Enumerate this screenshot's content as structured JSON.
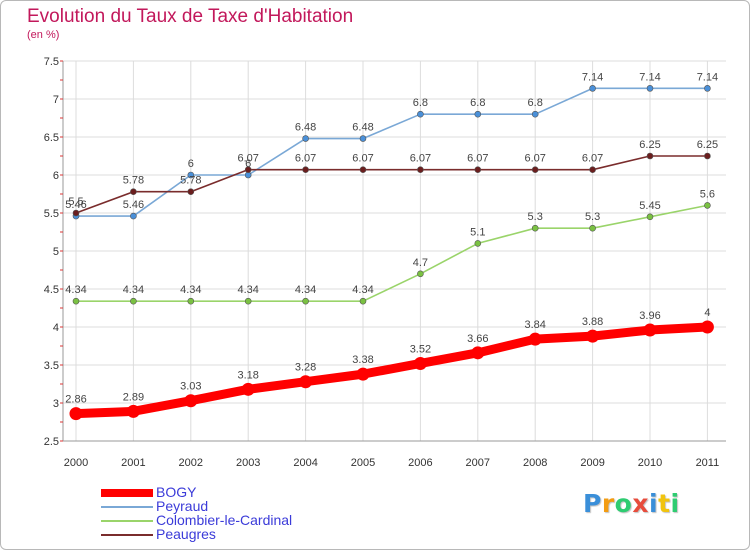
{
  "header": {
    "title": "Evolution du Taux de Taxe d'Habitation",
    "subtitle": "(en %)"
  },
  "chart_data": {
    "type": "line",
    "x": [
      "2000",
      "2001",
      "2002",
      "2003",
      "2004",
      "2005",
      "2006",
      "2007",
      "2008",
      "2009",
      "2010",
      "2011"
    ],
    "ylim": [
      2.5,
      7.5
    ],
    "yticks": [
      "2.5",
      "3",
      "3.5",
      "4",
      "4.5",
      "5",
      "5.5",
      "6",
      "6.5",
      "7",
      "7.5"
    ],
    "grid": true,
    "legend_position": "bottom-left",
    "series": [
      {
        "name": "Peyraud",
        "color": "#7aa8d6",
        "point_color": "#4a90d9",
        "values": [
          5.46,
          5.46,
          6,
          6,
          6.48,
          6.48,
          6.8,
          6.8,
          6.8,
          7.14,
          7.14,
          7.14
        ],
        "labels": [
          "5.46",
          "5.46",
          "6",
          "6",
          "6.48",
          "6.48",
          "6.8",
          "6.8",
          "6.8",
          "7.14",
          "7.14",
          "7.14"
        ]
      },
      {
        "name": "Peaugres",
        "color": "#7a2c2c",
        "point_color": "#6b1e1e",
        "values": [
          5.5,
          5.78,
          5.78,
          6.07,
          6.07,
          6.07,
          6.07,
          6.07,
          6.07,
          6.07,
          6.25,
          6.25
        ],
        "labels": [
          "5.5",
          "5.78",
          "5.78",
          "6.07",
          "6.07",
          "6.07",
          "6.07",
          "6.07",
          "6.07",
          "6.07",
          "6.25",
          "6.25"
        ]
      },
      {
        "name": "Colombier-le-Cardinal",
        "color": "#9ad46a",
        "point_color": "#7ac142",
        "values": [
          4.34,
          4.34,
          4.34,
          4.34,
          4.34,
          4.34,
          4.7,
          5.1,
          5.3,
          5.3,
          5.45,
          5.6
        ],
        "labels": [
          "4.34",
          "4.34",
          "4.34",
          "4.34",
          "4.34",
          "4.34",
          "4.7",
          "5.1",
          "5.3",
          "5.3",
          "5.45",
          "5.6"
        ]
      },
      {
        "name": "BOGY",
        "color": "#ff0000",
        "point_color": "#ff0000",
        "values": [
          2.86,
          2.89,
          3.03,
          3.18,
          3.28,
          3.38,
          3.52,
          3.66,
          3.84,
          3.88,
          3.96,
          4
        ],
        "labels": [
          "2.86",
          "2.89",
          "3.03",
          "3.18",
          "3.28",
          "3.38",
          "3.52",
          "3.66",
          "3.84",
          "3.88",
          "3.96",
          "4"
        ]
      }
    ],
    "legend": [
      {
        "name": "BOGY",
        "color": "#ff0000"
      },
      {
        "name": "Peyraud",
        "color": "#7aa8d6"
      },
      {
        "name": "Colombier-le-Cardinal",
        "color": "#9ad46a"
      },
      {
        "name": "Peaugres",
        "color": "#7a2c2c"
      }
    ]
  },
  "logo": {
    "letters": [
      "P",
      "r",
      "o",
      "x",
      "i",
      "t",
      "i"
    ],
    "colors": [
      "#3a8fd9",
      "#f39c12",
      "#2ecc71",
      "#e74c3c",
      "#3a8fd9",
      "#f1c40f",
      "#2ecc71"
    ]
  }
}
